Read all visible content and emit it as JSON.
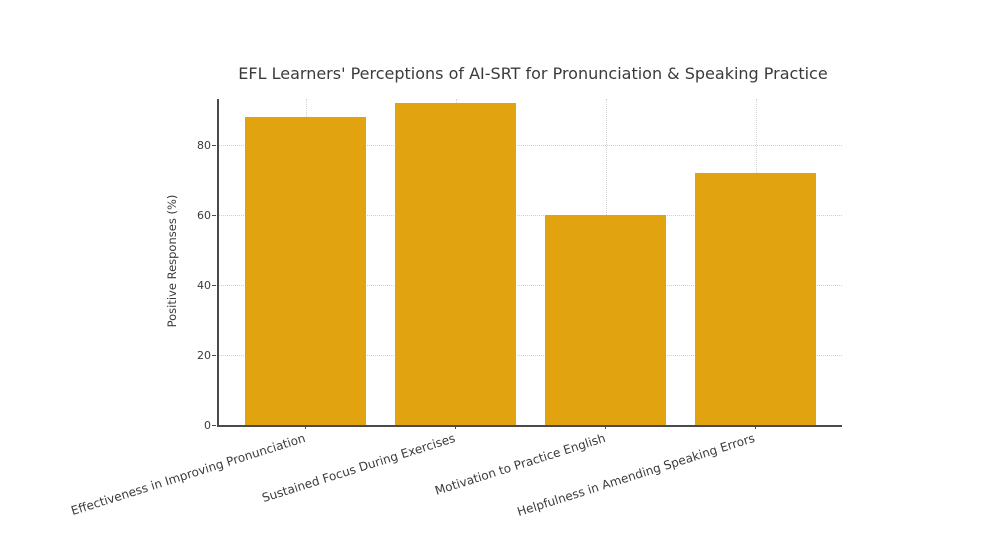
{
  "chart_data": {
    "type": "bar",
    "title": "EFL Learners' Perceptions of AI-SRT for Pronunciation & Speaking Practice",
    "categories": [
      "Effectiveness in Improving Pronunciation",
      "Sustained Focus During Exercises",
      "Motivation to Practice English",
      "Helpfulness in Amending Speaking Errors"
    ],
    "values": [
      88,
      92,
      60,
      72
    ],
    "xlabel": "",
    "ylabel": "Positive Responses (%)",
    "yticks": [
      0,
      20,
      40,
      60,
      80
    ],
    "ytick_labels": [
      "0",
      "20",
      "40",
      "60",
      "80"
    ],
    "ylim": [
      0,
      93
    ],
    "grid": true,
    "grid_style": "dotted",
    "legend_position": "none",
    "bar_color": "#e2a311"
  },
  "colors": {
    "bar": "#e2a311",
    "text": "#3b3b3b",
    "grid": "#cfcfcf",
    "axis": "#4a4a4a",
    "background": "#ffffff"
  }
}
